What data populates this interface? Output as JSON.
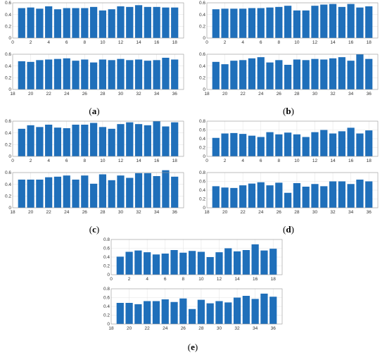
{
  "colors": {
    "bar": "#1f6fba",
    "grid": "#e6e6e6",
    "axis": "#9a9a9a"
  },
  "panels": [
    {
      "caption_pre": "(",
      "caption_letter": "a",
      "caption_post": ")"
    },
    {
      "caption_pre": "(",
      "caption_letter": "b",
      "caption_post": ")"
    },
    {
      "caption_pre": "(",
      "caption_letter": "c",
      "caption_post": ")"
    },
    {
      "caption_pre": "(",
      "caption_letter": "d",
      "caption_post": ")"
    },
    {
      "caption_pre": "(",
      "caption_letter": "e",
      "caption_post": ")"
    }
  ],
  "chart_data": [
    {
      "panel": "a",
      "type": "bar",
      "subplots": [
        {
          "x": [
            1,
            2,
            3,
            4,
            5,
            6,
            7,
            8,
            9,
            10,
            11,
            12,
            13,
            14,
            15,
            16,
            17,
            18
          ],
          "values": [
            0.51,
            0.52,
            0.5,
            0.54,
            0.49,
            0.51,
            0.51,
            0.51,
            0.53,
            0.47,
            0.49,
            0.54,
            0.53,
            0.56,
            0.53,
            0.53,
            0.52,
            0.52
          ],
          "xlim": [
            0,
            19
          ],
          "ylim": [
            0,
            0.6
          ],
          "xticks": [
            "0",
            "2",
            "4",
            "6",
            "8",
            "10",
            "12",
            "14",
            "16",
            "18"
          ],
          "xtick_values": [
            0,
            2,
            4,
            6,
            8,
            10,
            12,
            14,
            16,
            18
          ],
          "yticks": [
            "0",
            "0.2",
            "0.4",
            "0.6"
          ],
          "ytick_values": [
            0,
            0.2,
            0.4,
            0.6
          ]
        },
        {
          "x": [
            19,
            20,
            21,
            22,
            23,
            24,
            25,
            26,
            27,
            28,
            29,
            30,
            31,
            32,
            33,
            34,
            35,
            36
          ],
          "values": [
            0.48,
            0.47,
            0.5,
            0.51,
            0.52,
            0.53,
            0.49,
            0.51,
            0.46,
            0.51,
            0.5,
            0.52,
            0.5,
            0.51,
            0.49,
            0.5,
            0.54,
            0.51
          ],
          "xlim": [
            18,
            37
          ],
          "ylim": [
            0,
            0.6
          ],
          "xticks": [
            "18",
            "20",
            "22",
            "24",
            "26",
            "28",
            "30",
            "32",
            "34",
            "36"
          ],
          "xtick_values": [
            18,
            20,
            22,
            24,
            26,
            28,
            30,
            32,
            34,
            36
          ],
          "yticks": [
            "0",
            "0.2",
            "0.4",
            "0.6"
          ],
          "ytick_values": [
            0,
            0.2,
            0.4,
            0.6
          ]
        }
      ]
    },
    {
      "panel": "b",
      "type": "bar",
      "subplots": [
        {
          "x": [
            1,
            2,
            3,
            4,
            5,
            6,
            7,
            8,
            9,
            10,
            11,
            12,
            13,
            14,
            15,
            16,
            17,
            18
          ],
          "values": [
            0.49,
            0.5,
            0.5,
            0.5,
            0.51,
            0.51,
            0.52,
            0.53,
            0.55,
            0.47,
            0.47,
            0.55,
            0.57,
            0.58,
            0.53,
            0.58,
            0.52,
            0.54
          ],
          "xlim": [
            0,
            19
          ],
          "ylim": [
            0,
            0.6
          ],
          "xticks": [
            "0",
            "2",
            "4",
            "6",
            "8",
            "10",
            "12",
            "14",
            "16",
            "18"
          ],
          "xtick_values": [
            0,
            2,
            4,
            6,
            8,
            10,
            12,
            14,
            16,
            18
          ],
          "yticks": [
            "0",
            "0.2",
            "0.4",
            "0.6"
          ],
          "ytick_values": [
            0,
            0.2,
            0.4,
            0.6
          ]
        },
        {
          "x": [
            19,
            20,
            21,
            22,
            23,
            24,
            25,
            26,
            27,
            28,
            29,
            30,
            31,
            32,
            33,
            34,
            35,
            36
          ],
          "values": [
            0.47,
            0.43,
            0.49,
            0.5,
            0.53,
            0.55,
            0.46,
            0.5,
            0.42,
            0.51,
            0.5,
            0.52,
            0.51,
            0.53,
            0.55,
            0.49,
            0.6,
            0.52
          ],
          "xlim": [
            18,
            37
          ],
          "ylim": [
            0,
            0.6
          ],
          "xticks": [
            "18",
            "20",
            "22",
            "24",
            "26",
            "28",
            "30",
            "32",
            "34",
            "36"
          ],
          "xtick_values": [
            18,
            20,
            22,
            24,
            26,
            28,
            30,
            32,
            34,
            36
          ],
          "yticks": [
            "0",
            "0.2",
            "0.4",
            "0.6"
          ],
          "ytick_values": [
            0,
            0.2,
            0.4,
            0.6
          ]
        }
      ]
    },
    {
      "panel": "c",
      "type": "bar",
      "subplots": [
        {
          "x": [
            1,
            2,
            3,
            4,
            5,
            6,
            7,
            8,
            9,
            10,
            11,
            12,
            13,
            14,
            15,
            16,
            17,
            18
          ],
          "values": [
            0.47,
            0.53,
            0.5,
            0.54,
            0.49,
            0.48,
            0.54,
            0.54,
            0.57,
            0.5,
            0.47,
            0.55,
            0.58,
            0.55,
            0.53,
            0.6,
            0.51,
            0.58
          ],
          "xlim": [
            0,
            19
          ],
          "ylim": [
            0,
            0.6
          ],
          "xticks": [
            "0",
            "2",
            "4",
            "6",
            "8",
            "10",
            "12",
            "14",
            "16",
            "18"
          ],
          "xtick_values": [
            0,
            2,
            4,
            6,
            8,
            10,
            12,
            14,
            16,
            18
          ],
          "yticks": [
            "0",
            "0.2",
            "0.4",
            "0.6"
          ],
          "ytick_values": [
            0,
            0.2,
            0.4,
            0.6
          ]
        },
        {
          "x": [
            19,
            20,
            21,
            22,
            23,
            24,
            25,
            26,
            27,
            28,
            29,
            30,
            31,
            32,
            33,
            34,
            35,
            36
          ],
          "values": [
            0.48,
            0.48,
            0.48,
            0.52,
            0.53,
            0.55,
            0.48,
            0.55,
            0.41,
            0.57,
            0.47,
            0.55,
            0.51,
            0.59,
            0.59,
            0.54,
            0.64,
            0.53
          ],
          "xlim": [
            18,
            37
          ],
          "ylim": [
            0,
            0.6
          ],
          "xticks": [
            "18",
            "20",
            "22",
            "24",
            "26",
            "28",
            "30",
            "32",
            "34",
            "36"
          ],
          "xtick_values": [
            18,
            20,
            22,
            24,
            26,
            28,
            30,
            32,
            34,
            36
          ],
          "yticks": [
            "0",
            "0.2",
            "0.4",
            "0.6"
          ],
          "ytick_values": [
            0,
            0.2,
            0.4,
            0.6
          ]
        }
      ]
    },
    {
      "panel": "d",
      "type": "bar",
      "subplots": [
        {
          "x": [
            1,
            2,
            3,
            4,
            5,
            6,
            7,
            8,
            9,
            10,
            11,
            12,
            13,
            14,
            15,
            16,
            17,
            18
          ],
          "values": [
            0.42,
            0.52,
            0.53,
            0.51,
            0.47,
            0.44,
            0.55,
            0.5,
            0.54,
            0.5,
            0.44,
            0.55,
            0.6,
            0.52,
            0.57,
            0.65,
            0.52,
            0.59
          ],
          "xlim": [
            0,
            19
          ],
          "ylim": [
            0,
            0.8
          ],
          "xticks": [
            "0",
            "2",
            "4",
            "6",
            "8",
            "10",
            "12",
            "14",
            "16",
            "18"
          ],
          "xtick_values": [
            0,
            2,
            4,
            6,
            8,
            10,
            12,
            14,
            16,
            18
          ],
          "yticks": [
            "0",
            "0.2",
            "0.4",
            "0.6",
            "0.8"
          ],
          "ytick_values": [
            0,
            0.2,
            0.4,
            0.6,
            0.8
          ]
        },
        {
          "x": [
            19,
            20,
            21,
            22,
            23,
            24,
            25,
            26,
            27,
            28,
            29,
            30,
            31,
            32,
            33,
            34,
            35,
            36
          ],
          "values": [
            0.49,
            0.46,
            0.45,
            0.51,
            0.55,
            0.58,
            0.51,
            0.57,
            0.34,
            0.56,
            0.48,
            0.54,
            0.49,
            0.6,
            0.6,
            0.54,
            0.64,
            0.6
          ],
          "xlim": [
            18,
            37
          ],
          "ylim": [
            0,
            0.8
          ],
          "xticks": [
            "18",
            "20",
            "22",
            "24",
            "26",
            "28",
            "30",
            "32",
            "34",
            "36"
          ],
          "xtick_values": [
            18,
            20,
            22,
            24,
            26,
            28,
            30,
            32,
            34,
            36
          ],
          "yticks": [
            "0",
            "0.2",
            "0.4",
            "0.6",
            "0.8"
          ],
          "ytick_values": [
            0,
            0.2,
            0.4,
            0.6,
            0.8
          ]
        }
      ]
    },
    {
      "panel": "e",
      "type": "bar",
      "subplots": [
        {
          "x": [
            1,
            2,
            3,
            4,
            5,
            6,
            7,
            8,
            9,
            10,
            11,
            12,
            13,
            14,
            15,
            16,
            17,
            18
          ],
          "values": [
            0.41,
            0.52,
            0.55,
            0.51,
            0.46,
            0.48,
            0.56,
            0.5,
            0.54,
            0.52,
            0.4,
            0.51,
            0.6,
            0.53,
            0.56,
            0.69,
            0.55,
            0.59
          ],
          "xlim": [
            0,
            19
          ],
          "ylim": [
            0,
            0.8
          ],
          "xticks": [
            "0",
            "2",
            "4",
            "6",
            "8",
            "10",
            "12",
            "14",
            "16",
            "18"
          ],
          "xtick_values": [
            0,
            2,
            4,
            6,
            8,
            10,
            12,
            14,
            16,
            18
          ],
          "yticks": [
            "0",
            "0.2",
            "0.4",
            "0.6",
            "0.8"
          ],
          "ytick_values": [
            0,
            0.2,
            0.4,
            0.6,
            0.8
          ]
        },
        {
          "x": [
            19,
            20,
            21,
            22,
            23,
            24,
            25,
            26,
            27,
            28,
            29,
            30,
            31,
            32,
            33,
            34,
            35,
            36
          ],
          "values": [
            0.48,
            0.48,
            0.45,
            0.52,
            0.52,
            0.56,
            0.5,
            0.58,
            0.34,
            0.55,
            0.47,
            0.52,
            0.49,
            0.6,
            0.64,
            0.57,
            0.69,
            0.62
          ],
          "xlim": [
            18,
            37
          ],
          "ylim": [
            0,
            0.8
          ],
          "xticks": [
            "18",
            "20",
            "22",
            "24",
            "26",
            "28",
            "30",
            "32",
            "34",
            "36"
          ],
          "xtick_values": [
            18,
            20,
            22,
            24,
            26,
            28,
            30,
            32,
            34,
            36
          ],
          "yticks": [
            "0",
            "0.2",
            "0.4",
            "0.6",
            "0.8"
          ],
          "ytick_values": [
            0,
            0.2,
            0.4,
            0.6,
            0.8
          ]
        }
      ]
    }
  ]
}
